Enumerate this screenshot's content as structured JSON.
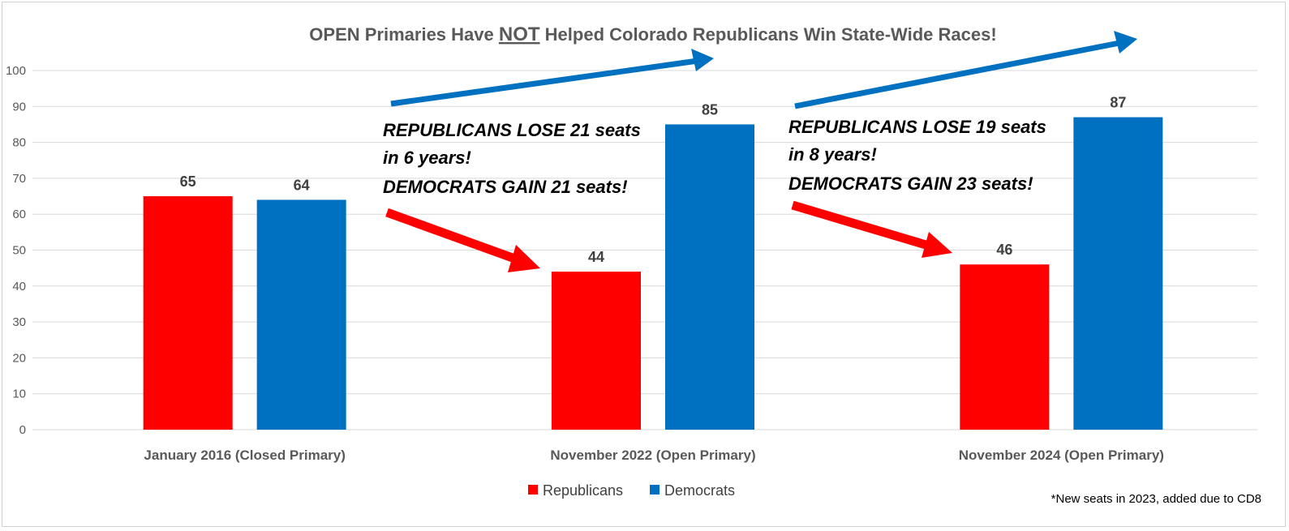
{
  "chart_data": {
    "type": "bar",
    "title_parts": [
      "OPEN Primaries Have ",
      "NOT",
      " Helped Colorado Republicans Win State-Wide Races!"
    ],
    "categories": [
      "January 2016 (Closed Primary)",
      "November 2022  (Open Primary)",
      "November 2024 (Open Primary)"
    ],
    "series": [
      {
        "name": "Republicans",
        "color": "#ff0000",
        "values": [
          65,
          44,
          46
        ]
      },
      {
        "name": "Democrats",
        "color": "#0070c0",
        "values": [
          64,
          85,
          87
        ]
      }
    ],
    "ylim": [
      0,
      100
    ],
    "yticks": [
      0,
      10,
      20,
      30,
      40,
      50,
      60,
      70,
      80,
      90,
      100
    ],
    "grid": true,
    "legend": "bottom",
    "annotations": [
      [
        "REPUBLICANS LOSE 21 seats",
        "in 6 years!",
        "DEMOCRATS GAIN 21 seats!"
      ],
      [
        "REPUBLICANS LOSE 19 seats",
        "in 8 years!",
        "DEMOCRATS GAIN 23 seats!"
      ]
    ],
    "footnote": "*New seats in 2023, added due to CD8"
  }
}
